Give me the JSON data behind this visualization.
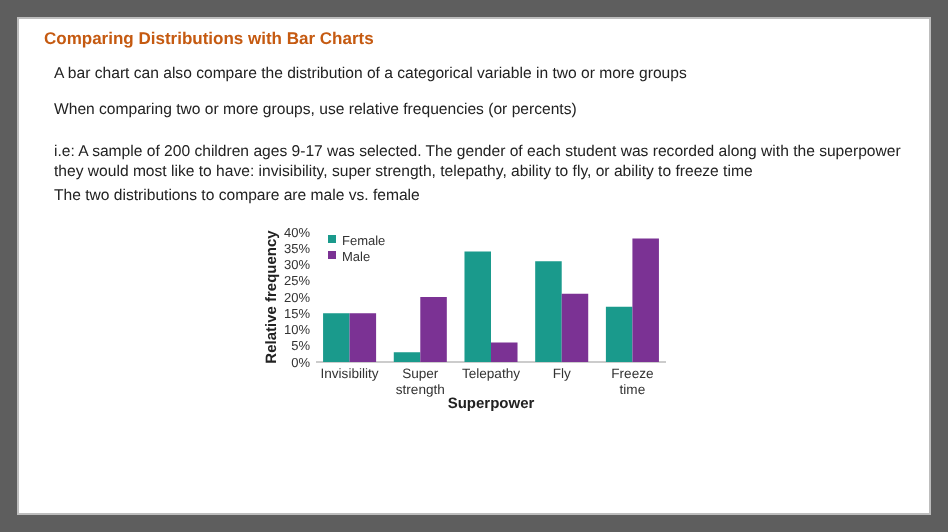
{
  "chart_data": {
    "type": "bar",
    "title": "Comparing Distributions with Bar Charts",
    "annotations": [
      "A bar chart can also compare the distribution of a categorical variable in two or more groups",
      "When comparing two or more groups, use relative frequencies (or percents)",
      "i.e: A sample of 200 children ages 9-17 was selected. The gender of each student was recorded along with the superpower they would most like to have: invisibility, super strength, telepathy, ability to fly, or ability to freeze time",
      "The two distributions to compare are male vs. female"
    ],
    "xlabel": "Superpower",
    "ylabel": "Relative frequency",
    "categories": [
      "Invisibility",
      "Super strength",
      "Telepathy",
      "Fly",
      "Freeze time"
    ],
    "series": [
      {
        "name": "Female",
        "color": "#1a9a8c",
        "values": [
          15,
          3,
          34,
          31,
          17
        ]
      },
      {
        "name": "Male",
        "color": "#7b3294",
        "values": [
          15,
          20,
          6,
          21,
          38
        ]
      }
    ],
    "ylim": [
      0,
      40
    ],
    "yticks": [
      {
        "value": 0,
        "label": "0%"
      },
      {
        "value": 5,
        "label": "5%"
      },
      {
        "value": 10,
        "label": "10%"
      },
      {
        "value": 15,
        "label": "15%"
      },
      {
        "value": 20,
        "label": "20%"
      },
      {
        "value": 25,
        "label": "25%"
      },
      {
        "value": 30,
        "label": "30%"
      },
      {
        "value": 35,
        "label": "35%"
      },
      {
        "value": 40,
        "label": "40%"
      }
    ],
    "legend": "top left"
  }
}
